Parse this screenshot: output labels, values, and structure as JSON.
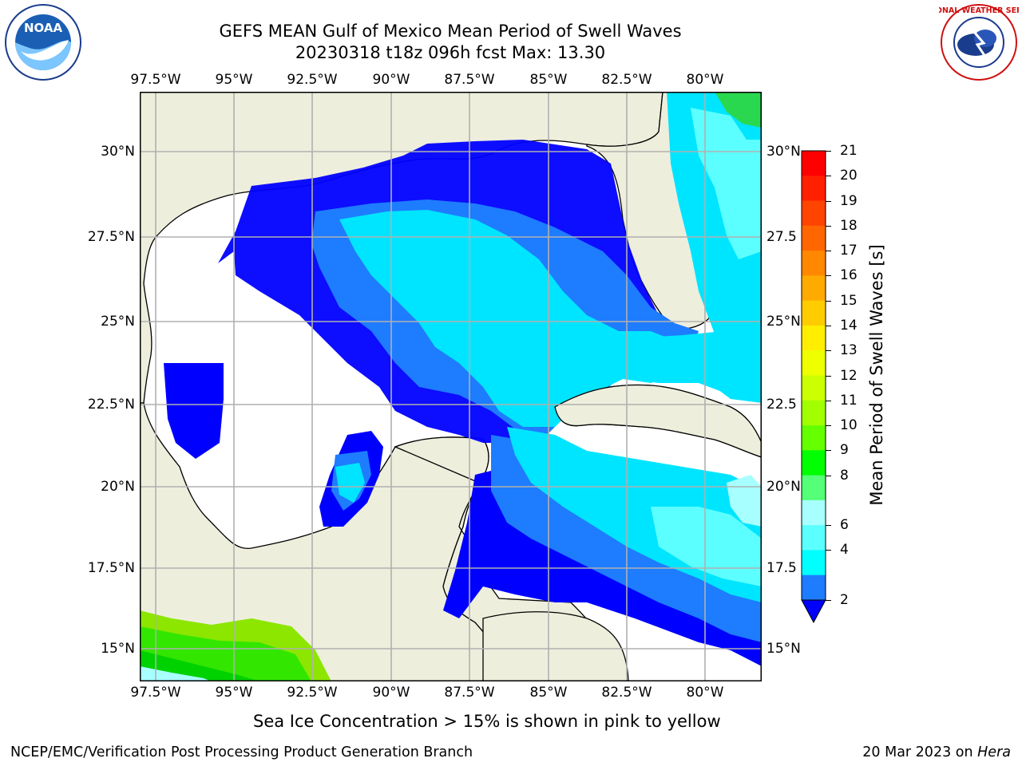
{
  "header": {
    "title_line1": "GEFS MEAN Gulf of Mexico Mean Period of Swell Waves",
    "title_line2": "20230318 t18z 096h fcst   Max: 13.30"
  },
  "logos": {
    "noaa": "NOAA",
    "nws_text": "NATIONAL WEATHER SERVICE"
  },
  "map": {
    "lon_labels": [
      "97.5°W",
      "95°W",
      "92.5°W",
      "90°W",
      "87.5°W",
      "85°W",
      "82.5°W",
      "80°W"
    ],
    "lat_labels_left": [
      "30°N",
      "27.5°N",
      "25°N",
      "22.5°N",
      "20°N",
      "17.5°N",
      "15°N"
    ],
    "lat_labels_right": [
      "30°N",
      "27.5",
      "25°N",
      "22.5",
      "20°N",
      "17.5",
      "15°N"
    ],
    "colors": {
      "land": "#eeeedd",
      "coast": "#000000",
      "grid": "#b0b0b0"
    },
    "swell_field": [
      {
        "class": "2-4",
        "color": "#0000ff"
      },
      {
        "class": "4-6",
        "color": "#1e7cff"
      },
      {
        "class": "6-8",
        "color": "#00e5ff"
      },
      {
        "class": "8-9",
        "color": "#5cffff"
      },
      {
        "class": "9-10",
        "color": "#a8ffff"
      },
      {
        "class": "10-11",
        "color": "#00d200"
      },
      {
        "class": "11-12",
        "color": "#32e600"
      },
      {
        "class": "12-13",
        "color": "#8ce600"
      }
    ]
  },
  "colorbar": {
    "label": "Mean Period of Swell Waves [s]",
    "ticks": [
      "21",
      "20",
      "19",
      "18",
      "17",
      "16",
      "15",
      "14",
      "13",
      "12",
      "11",
      "10",
      "9",
      "8",
      "6",
      "4",
      "2"
    ],
    "colors_top_to_bottom": [
      "#ff0000",
      "#ff2000",
      "#ff4400",
      "#ff6600",
      "#ff8800",
      "#ffaa00",
      "#ffcc00",
      "#ffee00",
      "#eeff00",
      "#ccff00",
      "#a2ff00",
      "#66ff00",
      "#00ff00",
      "#55ff77",
      "#a8ffff",
      "#5cffff",
      "#00ffff",
      "#1e7cff"
    ],
    "under_color": "#0000ff"
  },
  "note": "Sea Ice Concentration > 15% is shown in pink to yellow",
  "footer": {
    "left": "NCEP/EMC/Verification Post Processing Product Generation Branch",
    "right_prefix": "20 Mar 2023 on ",
    "right_host": "Hera"
  }
}
